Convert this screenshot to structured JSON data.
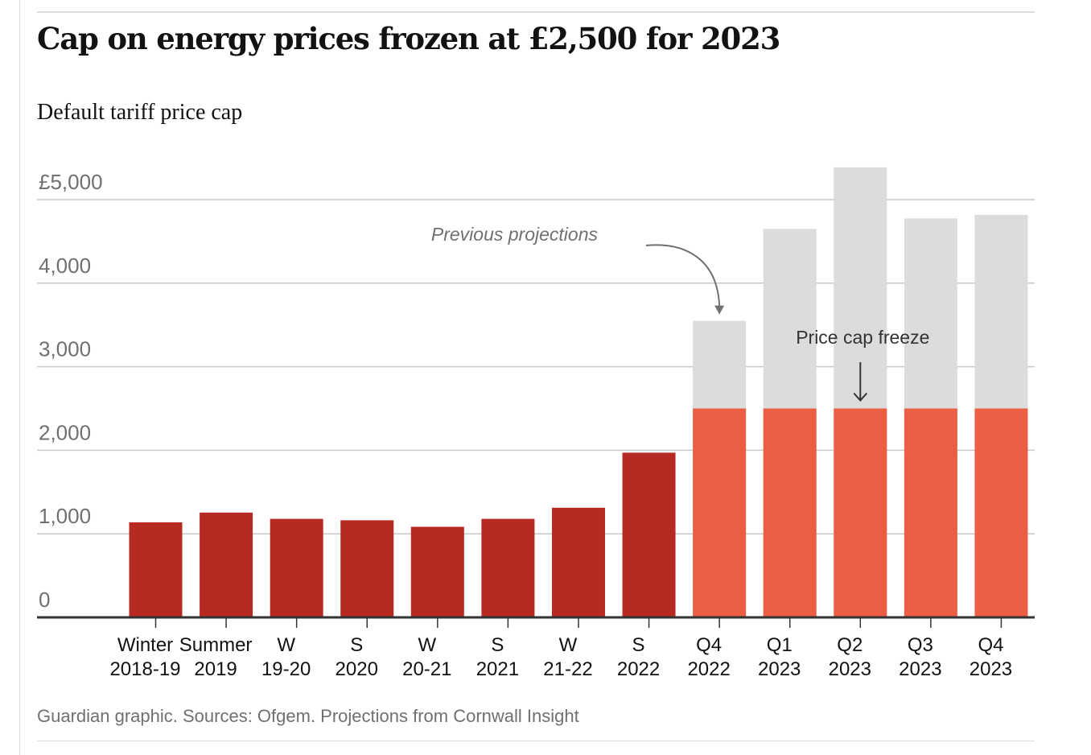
{
  "title": "Cap on energy prices frozen at £2,500 for 2023",
  "subtitle": "Default tariff price cap",
  "source": "Guardian graphic. Sources: Ofgem. Projections from Cornwall Insight",
  "colors": {
    "historic": "#b72a22",
    "frozen": "#ec5e44",
    "projection": "#dcdcdc",
    "grid": "#c8c8c8",
    "axis": "#333333",
    "tick_text": "#707070",
    "label_text": "#121212"
  },
  "chart_data": {
    "type": "bar",
    "title": "Cap on energy prices frozen at £2,500 for 2023",
    "subtitle": "Default tariff price cap",
    "ylim": [
      0,
      5000
    ],
    "grid": true,
    "yticks": [
      {
        "value": 0,
        "label": "0"
      },
      {
        "value": 1000,
        "label": "1,000"
      },
      {
        "value": 2000,
        "label": "2,000"
      },
      {
        "value": 3000,
        "label": "3,000"
      },
      {
        "value": 4000,
        "label": "4,000"
      },
      {
        "value": 5000,
        "label": "£5,000"
      }
    ],
    "categories": [
      [
        "Winter",
        "2018-19"
      ],
      [
        "Summer",
        "2019"
      ],
      [
        "W",
        "19-20"
      ],
      [
        "S",
        "2020"
      ],
      [
        "W",
        "20-21"
      ],
      [
        "S",
        "2021"
      ],
      [
        "W",
        "21-22"
      ],
      [
        "S",
        "2022"
      ],
      [
        "Q4",
        "2022"
      ],
      [
        "Q1",
        "2023"
      ],
      [
        "Q2",
        "2023"
      ],
      [
        "Q3",
        "2023"
      ],
      [
        "Q4",
        "2023"
      ]
    ],
    "series": [
      {
        "key": "historic",
        "values": [
          1137,
          1254,
          1179,
          1162,
          1084,
          1179,
          1312,
          1971,
          null,
          null,
          null,
          null,
          null
        ]
      },
      {
        "key": "frozen",
        "values": [
          null,
          null,
          null,
          null,
          null,
          null,
          null,
          null,
          2500,
          2500,
          2500,
          2500,
          2500
        ]
      },
      {
        "key": "projection",
        "values": [
          null,
          null,
          null,
          null,
          null,
          null,
          null,
          null,
          3549,
          4650,
          5386,
          4775,
          4818
        ]
      }
    ],
    "annotations": {
      "previous": "Previous projections",
      "freeze": "Price cap freeze"
    }
  }
}
